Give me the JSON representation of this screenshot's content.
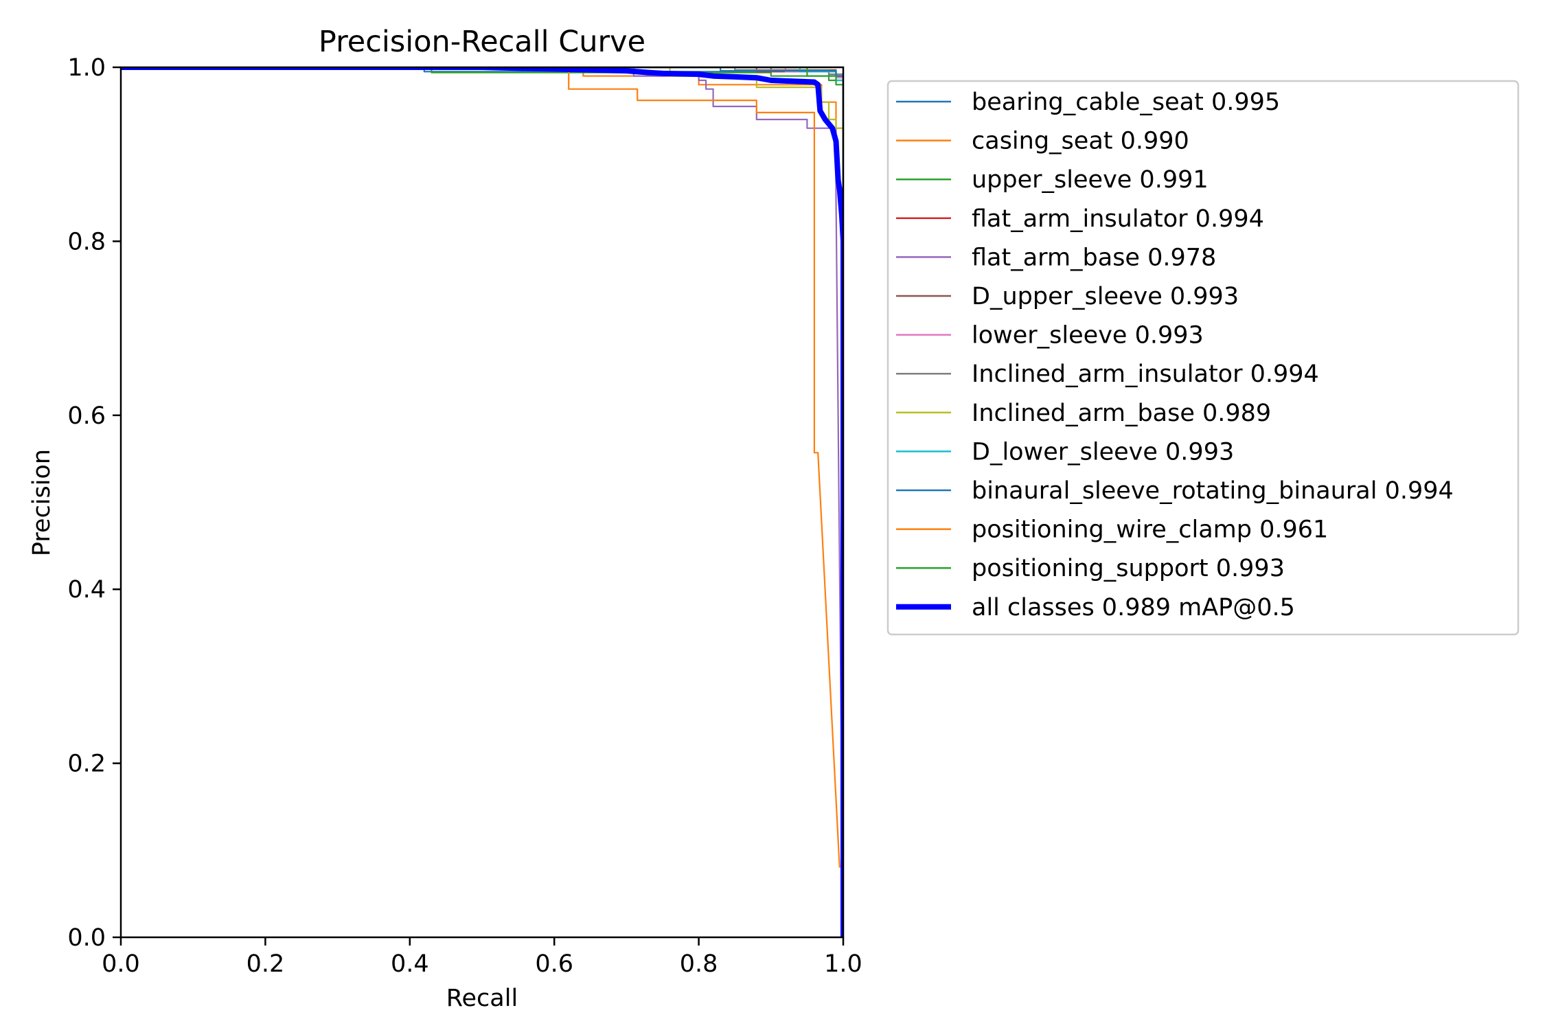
{
  "chart_data": {
    "type": "line",
    "title": "Precision-Recall Curve",
    "xlabel": "Recall",
    "ylabel": "Precision",
    "xlim": [
      0,
      1
    ],
    "ylim": [
      0,
      1
    ],
    "xticks": [
      0.0,
      0.2,
      0.4,
      0.6,
      0.8,
      1.0
    ],
    "xtick_labels": [
      "0.0",
      "0.2",
      "0.4",
      "0.6",
      "0.8",
      "1.0"
    ],
    "yticks": [
      0.0,
      0.2,
      0.4,
      0.6,
      0.8,
      1.0
    ],
    "ytick_labels": [
      "0.0",
      "0.2",
      "0.4",
      "0.6",
      "0.8",
      "1.0"
    ],
    "grid": false,
    "legend_position": "outside-right-top",
    "series": [
      {
        "name": "bearing_cable_seat 0.995",
        "color": "#1f77b4",
        "linewidth": 1,
        "x": [
          0,
          0.42,
          0.42,
          0.98,
          0.98,
          1.0,
          1.0
        ],
        "y": [
          1.0,
          1.0,
          0.995,
          0.995,
          0.99,
          0.99,
          0.0
        ]
      },
      {
        "name": "casing_seat 0.990",
        "color": "#ff7f0e",
        "linewidth": 1,
        "x": [
          0,
          0.64,
          0.64,
          0.8,
          0.8,
          0.97,
          0.97,
          0.99,
          0.99,
          1.0,
          1.0
        ],
        "y": [
          1.0,
          1.0,
          0.99,
          0.99,
          0.98,
          0.98,
          0.96,
          0.96,
          0.93,
          0.93,
          0.0
        ]
      },
      {
        "name": "upper_sleeve 0.991",
        "color": "#2ca02c",
        "linewidth": 1,
        "x": [
          0,
          0.43,
          0.43,
          0.9,
          0.9,
          0.98,
          0.98,
          1.0,
          1.0
        ],
        "y": [
          1.0,
          1.0,
          0.994,
          0.994,
          0.99,
          0.99,
          0.985,
          0.985,
          0.0
        ]
      },
      {
        "name": "flat_arm_insulator 0.994",
        "color": "#d62728",
        "linewidth": 1,
        "x": [
          0,
          0.88,
          0.88,
          0.99,
          0.99,
          1.0,
          1.0
        ],
        "y": [
          1.0,
          1.0,
          0.995,
          0.995,
          0.99,
          0.99,
          0.0
        ]
      },
      {
        "name": "flat_arm_base 0.978",
        "color": "#9467bd",
        "linewidth": 1,
        "x": [
          0,
          0.71,
          0.71,
          0.8,
          0.8,
          0.81,
          0.81,
          0.82,
          0.82,
          0.88,
          0.88,
          0.95,
          0.95,
          0.99,
          0.99,
          1.0
        ],
        "y": [
          1.0,
          1.0,
          0.99,
          0.99,
          0.985,
          0.985,
          0.975,
          0.975,
          0.955,
          0.955,
          0.94,
          0.94,
          0.93,
          0.93,
          0.85,
          0.0
        ]
      },
      {
        "name": "D_upper_sleeve 0.993",
        "color": "#8c564b",
        "linewidth": 1,
        "x": [
          0,
          0.9,
          0.9,
          0.99,
          0.99,
          1.0,
          1.0
        ],
        "y": [
          1.0,
          1.0,
          0.997,
          0.997,
          0.99,
          0.99,
          0.0
        ]
      },
      {
        "name": "lower_sleeve 0.993",
        "color": "#e377c2",
        "linewidth": 1,
        "x": [
          0,
          0.92,
          0.92,
          0.99,
          0.99,
          1.0,
          1.0
        ],
        "y": [
          1.0,
          1.0,
          0.995,
          0.995,
          0.988,
          0.988,
          0.0
        ]
      },
      {
        "name": "Inclined_arm_insulator 0.994",
        "color": "#7f7f7f",
        "linewidth": 1,
        "x": [
          0,
          0.85,
          0.85,
          0.98,
          0.98,
          1.0,
          1.0
        ],
        "y": [
          1.0,
          1.0,
          0.997,
          0.997,
          0.992,
          0.992,
          0.0
        ]
      },
      {
        "name": "Inclined_arm_base 0.989",
        "color": "#bcbd22",
        "linewidth": 1,
        "x": [
          0,
          0.76,
          0.76,
          0.88,
          0.88,
          0.97,
          0.97,
          0.98,
          0.98,
          0.99,
          0.99,
          1.0,
          1.0
        ],
        "y": [
          1.0,
          1.0,
          0.99,
          0.99,
          0.977,
          0.977,
          0.96,
          0.96,
          0.94,
          0.94,
          0.93,
          0.93,
          0.0
        ]
      },
      {
        "name": "D_lower_sleeve 0.993",
        "color": "#17becf",
        "linewidth": 1,
        "x": [
          0,
          0.94,
          0.94,
          0.99,
          0.99,
          1.0,
          1.0
        ],
        "y": [
          1.0,
          1.0,
          0.995,
          0.995,
          0.985,
          0.985,
          0.0
        ]
      },
      {
        "name": "binaural_sleeve_rotating_binaural 0.994",
        "color": "#1f77b4",
        "linewidth": 1,
        "x": [
          0,
          0.83,
          0.83,
          0.99,
          0.99,
          1.0,
          1.0
        ],
        "y": [
          1.0,
          1.0,
          0.996,
          0.996,
          0.99,
          0.99,
          0.0
        ]
      },
      {
        "name": "positioning_wire_clamp 0.961",
        "color": "#ff7f0e",
        "linewidth": 1,
        "x": [
          0,
          0.62,
          0.62,
          0.715,
          0.715,
          0.87,
          0.87,
          0.88,
          0.88,
          0.96,
          0.96,
          0.965,
          0.995
        ],
        "y": [
          1.0,
          1.0,
          0.975,
          0.975,
          0.962,
          0.962,
          0.962,
          0.962,
          0.948,
          0.948,
          0.557,
          0.557,
          0.08
        ]
      },
      {
        "name": "positioning_support 0.993",
        "color": "#2ca02c",
        "linewidth": 1,
        "x": [
          0,
          0.95,
          0.95,
          0.99,
          0.99,
          1.0,
          1.0
        ],
        "y": [
          1.0,
          1.0,
          0.99,
          0.99,
          0.98,
          0.98,
          0.0
        ]
      },
      {
        "name": "all classes 0.989 mAP@0.5",
        "color": "#0000ff",
        "linewidth": 3,
        "x": [
          0,
          0.5,
          0.6,
          0.65,
          0.7,
          0.73,
          0.75,
          0.8,
          0.82,
          0.85,
          0.88,
          0.9,
          0.93,
          0.96,
          0.965,
          0.968,
          0.975,
          0.985,
          0.99,
          0.993,
          0.995,
          0.998,
          1.0,
          1.0
        ],
        "y": [
          1.0,
          1.0,
          0.998,
          0.997,
          0.996,
          0.994,
          0.993,
          0.992,
          0.99,
          0.989,
          0.988,
          0.985,
          0.984,
          0.983,
          0.98,
          0.95,
          0.94,
          0.93,
          0.915,
          0.87,
          0.86,
          0.83,
          0.8,
          0.0
        ]
      }
    ]
  }
}
